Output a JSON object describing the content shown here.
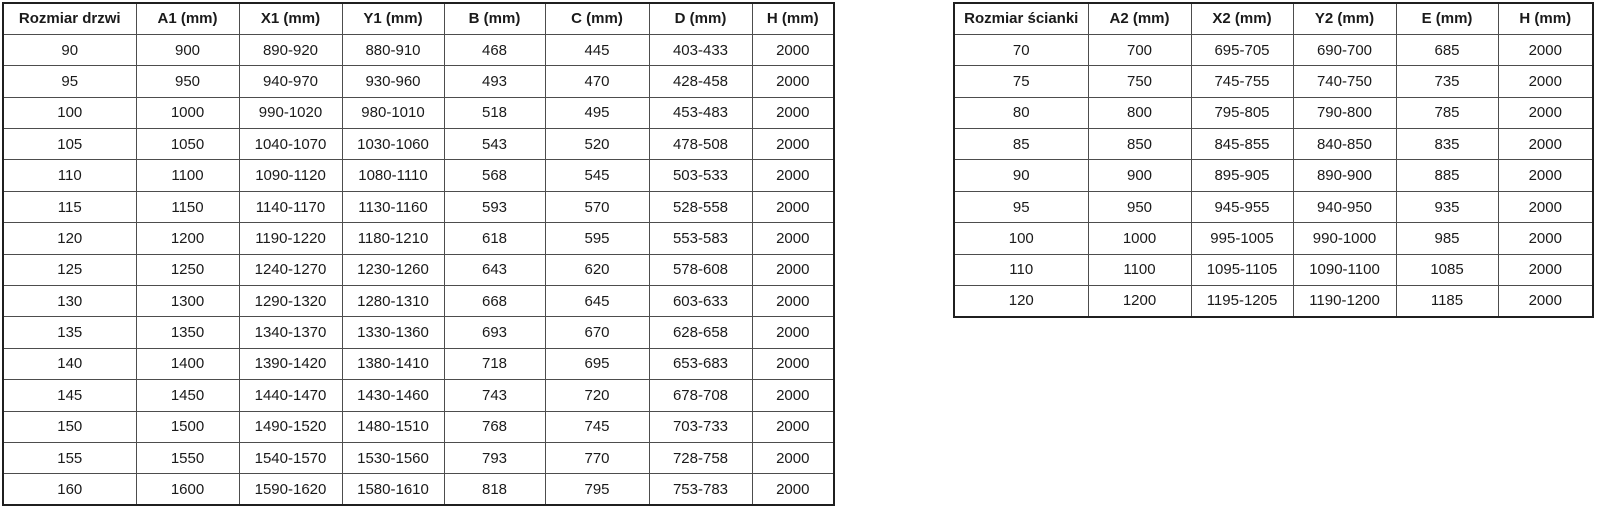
{
  "door_table": {
    "name": "door-size-table",
    "headers": [
      "Rozmiar drzwi",
      "A1 (mm)",
      "X1 (mm)",
      "Y1 (mm)",
      "B (mm)",
      "C (mm)",
      "D (mm)",
      "H (mm)"
    ],
    "rows": [
      [
        "90",
        "900",
        "890-920",
        "880-910",
        "468",
        "445",
        "403-433",
        "2000"
      ],
      [
        "95",
        "950",
        "940-970",
        "930-960",
        "493",
        "470",
        "428-458",
        "2000"
      ],
      [
        "100",
        "1000",
        "990-1020",
        "980-1010",
        "518",
        "495",
        "453-483",
        "2000"
      ],
      [
        "105",
        "1050",
        "1040-1070",
        "1030-1060",
        "543",
        "520",
        "478-508",
        "2000"
      ],
      [
        "110",
        "1100",
        "1090-1120",
        "1080-1110",
        "568",
        "545",
        "503-533",
        "2000"
      ],
      [
        "115",
        "1150",
        "1140-1170",
        "1130-1160",
        "593",
        "570",
        "528-558",
        "2000"
      ],
      [
        "120",
        "1200",
        "1190-1220",
        "1180-1210",
        "618",
        "595",
        "553-583",
        "2000"
      ],
      [
        "125",
        "1250",
        "1240-1270",
        "1230-1260",
        "643",
        "620",
        "578-608",
        "2000"
      ],
      [
        "130",
        "1300",
        "1290-1320",
        "1280-1310",
        "668",
        "645",
        "603-633",
        "2000"
      ],
      [
        "135",
        "1350",
        "1340-1370",
        "1330-1360",
        "693",
        "670",
        "628-658",
        "2000"
      ],
      [
        "140",
        "1400",
        "1390-1420",
        "1380-1410",
        "718",
        "695",
        "653-683",
        "2000"
      ],
      [
        "145",
        "1450",
        "1440-1470",
        "1430-1460",
        "743",
        "720",
        "678-708",
        "2000"
      ],
      [
        "150",
        "1500",
        "1490-1520",
        "1480-1510",
        "768",
        "745",
        "703-733",
        "2000"
      ],
      [
        "155",
        "1550",
        "1540-1570",
        "1530-1560",
        "793",
        "770",
        "728-758",
        "2000"
      ],
      [
        "160",
        "1600",
        "1590-1620",
        "1580-1610",
        "818",
        "795",
        "753-783",
        "2000"
      ]
    ]
  },
  "wall_table": {
    "name": "wall-size-table",
    "headers": [
      "Rozmiar ścianki",
      "A2 (mm)",
      "X2 (mm)",
      "Y2 (mm)",
      "E (mm)",
      "H (mm)"
    ],
    "rows": [
      [
        "70",
        "700",
        "695-705",
        "690-700",
        "685",
        "2000"
      ],
      [
        "75",
        "750",
        "745-755",
        "740-750",
        "735",
        "2000"
      ],
      [
        "80",
        "800",
        "795-805",
        "790-800",
        "785",
        "2000"
      ],
      [
        "85",
        "850",
        "845-855",
        "840-850",
        "835",
        "2000"
      ],
      [
        "90",
        "900",
        "895-905",
        "890-900",
        "885",
        "2000"
      ],
      [
        "95",
        "950",
        "945-955",
        "940-950",
        "935",
        "2000"
      ],
      [
        "100",
        "1000",
        "995-1005",
        "990-1000",
        "985",
        "2000"
      ],
      [
        "110",
        "1100",
        "1095-1105",
        "1090-1100",
        "1085",
        "2000"
      ],
      [
        "120",
        "1200",
        "1195-1205",
        "1190-1200",
        "1185",
        "2000"
      ]
    ]
  },
  "colors": {
    "background": "#ffffff",
    "text": "#1a1a1a",
    "outer_border": "#1f1f1f",
    "inner_border": "#4d4d4d"
  }
}
